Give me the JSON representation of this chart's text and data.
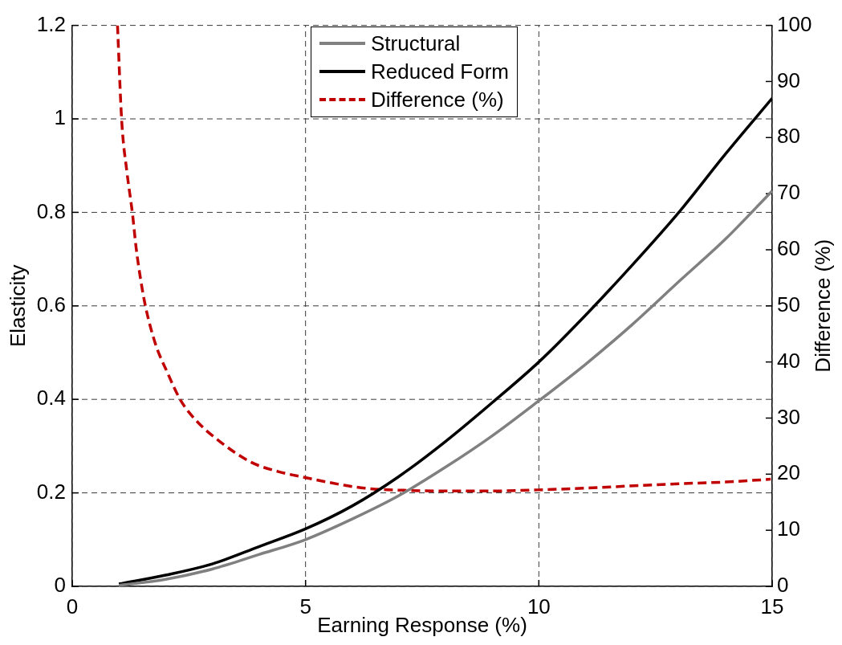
{
  "chart_data": {
    "type": "line",
    "xlabel": "Earning Response (%)",
    "ylabel": "Elasticity",
    "y2label": "Difference (%)",
    "x": [
      1,
      2,
      3,
      4,
      5,
      6,
      7,
      8,
      9,
      10,
      11,
      12,
      13,
      14,
      15
    ],
    "series": [
      {
        "name": "Structural",
        "color": "#808080",
        "values": [
          0.002,
          0.015,
          0.037,
          0.068,
          0.1,
          0.144,
          0.194,
          0.255,
          0.322,
          0.397,
          0.475,
          0.56,
          0.652,
          0.743,
          0.846
        ]
      },
      {
        "name": "Reduced Form",
        "color": "#000000",
        "values": [
          0.005,
          0.024,
          0.048,
          0.085,
          0.123,
          0.172,
          0.235,
          0.31,
          0.393,
          0.48,
          0.58,
          0.687,
          0.8,
          0.925,
          1.044
        ]
      },
      {
        "name": "Difference (%)",
        "color": "#c00000",
        "axis": "y2",
        "line_style": "dashed",
        "x": [
          0.97,
          1.06,
          1.17,
          1.29,
          1.37,
          1.47,
          1.57,
          1.78,
          2.04,
          2.32,
          2.64,
          3.15,
          3.84,
          4.4,
          4.99,
          5.85,
          6.27,
          7.21,
          8,
          9,
          9.98,
          10.96,
          12.21,
          13,
          14,
          14.97
        ],
        "values": [
          100,
          83,
          74,
          66.5,
          60.3,
          54.5,
          49.9,
          43.3,
          38.1,
          33.2,
          29.7,
          25.9,
          22.1,
          20.5,
          19.4,
          18,
          17.5,
          17.1,
          17,
          17,
          17.2,
          17.5,
          18,
          18.3,
          18.6,
          19.1
        ]
      }
    ],
    "xlim": [
      0,
      15
    ],
    "xticks": [
      0,
      5,
      10,
      15
    ],
    "ylim": [
      0,
      1.2
    ],
    "yticks": [
      0,
      0.2,
      0.4,
      0.6,
      0.8,
      1,
      1.2
    ],
    "y2lim": [
      0,
      100
    ],
    "y2ticks": [
      0,
      10,
      20,
      30,
      40,
      50,
      60,
      70,
      80,
      90,
      100
    ],
    "grid": true,
    "legend": "top"
  }
}
